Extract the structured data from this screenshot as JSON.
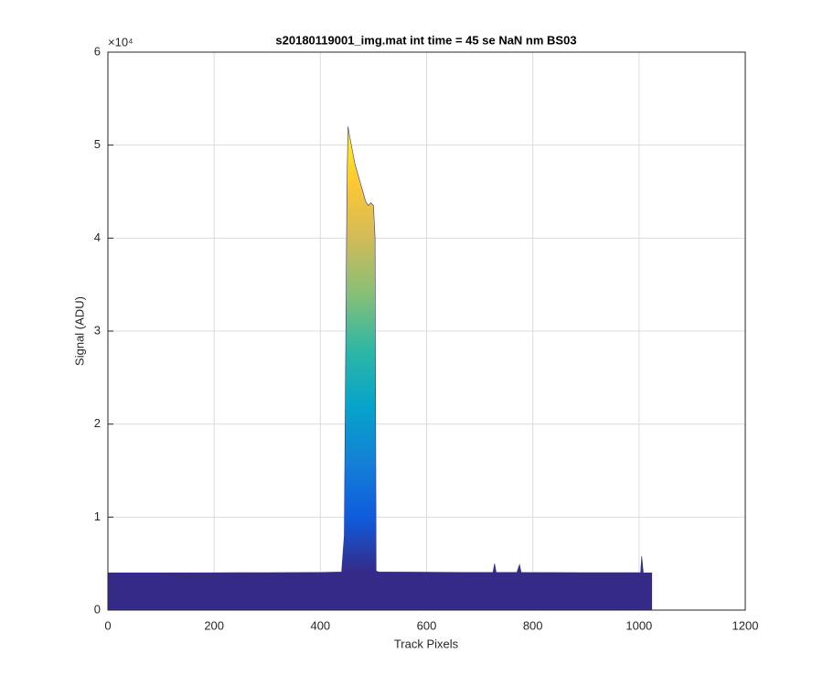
{
  "chart_data": {
    "type": "area",
    "title": "s20180119001_img.mat int time = 45 se  NaN nm BS03",
    "x_label": "Track Pixels",
    "y_label": "Signal (ADU)",
    "y_multiplier": "×10⁴",
    "x": [
      0,
      100,
      200,
      300,
      400,
      440,
      445,
      450,
      452,
      455,
      460,
      465,
      470,
      475,
      480,
      485,
      490,
      495,
      500,
      503,
      505,
      510,
      600,
      700,
      725,
      728,
      731,
      770,
      775,
      778,
      900,
      1000,
      1003,
      1005,
      1008,
      1020,
      1024
    ],
    "values": [
      4000,
      4000,
      4020,
      4030,
      4050,
      4100,
      8000,
      45000,
      52000,
      51000,
      49500,
      48000,
      47000,
      46000,
      45000,
      44000,
      43500,
      43800,
      43500,
      40000,
      4200,
      4100,
      4080,
      4050,
      4050,
      5000,
      4050,
      4050,
      4900,
      4050,
      4030,
      4030,
      4000,
      5800,
      4000,
      4000,
      4000
    ],
    "colormap": [
      "#352a87",
      "#0f5cdd",
      "#1481d6",
      "#06a4ca",
      "#2eb7a4",
      "#87bf77",
      "#d1bb59",
      "#fec832",
      "#f9fb0e"
    ],
    "xlim": [
      0,
      1200
    ],
    "xticks": [
      0,
      200,
      400,
      600,
      800,
      1000,
      1200
    ],
    "ylim": [
      0,
      60000
    ],
    "yticks": [
      {
        "value": 0,
        "label": "0"
      },
      {
        "value": 10000,
        "label": "1"
      },
      {
        "value": 20000,
        "label": "2"
      },
      {
        "value": 30000,
        "label": "3"
      },
      {
        "value": 40000,
        "label": "4"
      },
      {
        "value": 50000,
        "label": "5"
      },
      {
        "value": 60000,
        "label": "6"
      }
    ],
    "grid": true
  }
}
